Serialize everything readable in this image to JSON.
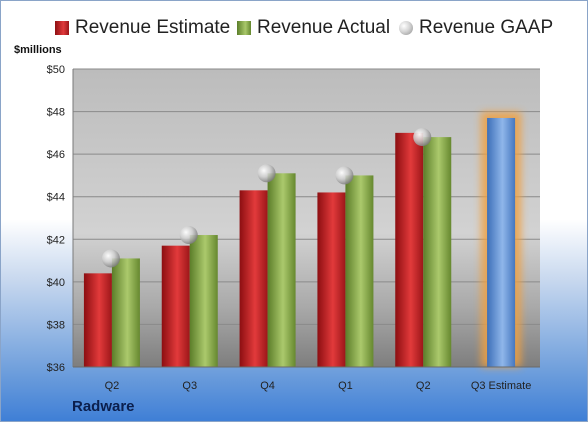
{
  "chart_data": {
    "type": "bar",
    "ylabel": "$millions",
    "ylim": [
      36,
      50
    ],
    "y_ticks": [
      "$36",
      "$38",
      "$40",
      "$42",
      "$44",
      "$46",
      "$48",
      "$50"
    ],
    "categories": [
      "Q2",
      "Q3",
      "Q4",
      "Q1",
      "Q2",
      "Q3 Estimate"
    ],
    "series": [
      {
        "name": "Revenue Estimate",
        "values": [
          40.4,
          41.7,
          44.3,
          44.2,
          47.0,
          null
        ]
      },
      {
        "name": "Revenue Actual",
        "values": [
          41.1,
          42.2,
          45.1,
          45.0,
          46.8,
          null
        ]
      },
      {
        "name": "Revenue GAAP",
        "values": [
          41.1,
          42.2,
          45.1,
          45.0,
          46.8,
          null
        ]
      }
    ],
    "forecast": {
      "category": "Q3 Estimate",
      "value": 47.7
    },
    "grid": true,
    "legend_position": "top"
  },
  "company": "Radware",
  "colors": {
    "estimate": "#c8201f",
    "actual": "#8ab04a",
    "gaap": "#bdbdbd",
    "forecast": "#5b8fd6",
    "forecast_glow": "#f0a040"
  }
}
